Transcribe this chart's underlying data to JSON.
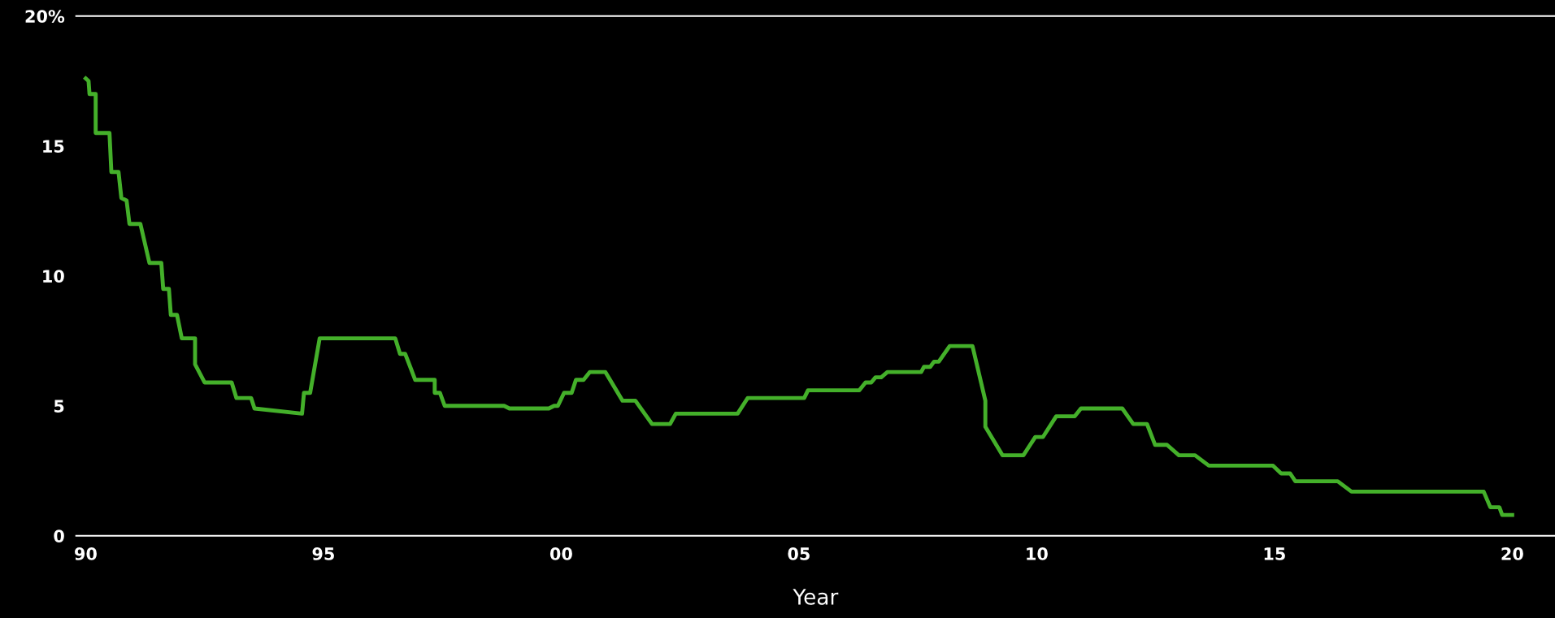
{
  "chart_data": {
    "type": "line",
    "xlabel": "Year",
    "x": [
      1990.0,
      1990.06,
      1990.08,
      1990.21,
      1990.21,
      1990.5,
      1990.54,
      1990.69,
      1990.75,
      1990.86,
      1990.92,
      1991.15,
      1991.34,
      1991.59,
      1991.63,
      1991.75,
      1991.79,
      1991.92,
      1992.02,
      1992.3,
      1992.3,
      1992.5,
      1993.07,
      1993.17,
      1993.48,
      1993.55,
      1994.55,
      1994.59,
      1994.72,
      1994.92,
      1996.51,
      1996.61,
      1996.72,
      1996.93,
      1997.34,
      1997.34,
      1997.45,
      1997.55,
      1998.8,
      1998.91,
      1999.74,
      1999.85,
      1999.93,
      2000.06,
      2000.22,
      2000.31,
      2000.47,
      2000.6,
      2000.93,
      2001.29,
      2001.56,
      2001.91,
      2002.29,
      2002.41,
      2003.71,
      2003.92,
      2005.11,
      2005.19,
      2006.27,
      2006.4,
      2006.52,
      2006.61,
      2006.73,
      2006.86,
      2007.57,
      2007.63,
      2007.76,
      2007.84,
      2007.94,
      2008.17,
      2008.65,
      2008.92,
      2008.92,
      2009.28,
      2009.72,
      2009.97,
      2010.13,
      2010.41,
      2010.8,
      2010.93,
      2011.8,
      2012.03,
      2012.32,
      2012.49,
      2012.74,
      2012.99,
      2013.33,
      2013.62,
      2014.97,
      2015.14,
      2015.33,
      2015.44,
      2016.33,
      2016.62,
      2019.4,
      2019.54,
      2019.73,
      2019.79,
      2020.0
    ],
    "series": [
      {
        "color": "#44b02a",
        "values": [
          17.6,
          17.5,
          17.0,
          17.0,
          15.5,
          15.5,
          14.0,
          14.0,
          13.0,
          12.9,
          12.0,
          12.0,
          10.5,
          10.5,
          9.5,
          9.5,
          8.5,
          8.5,
          7.6,
          7.6,
          6.6,
          5.9,
          5.9,
          5.3,
          5.3,
          4.9,
          4.7,
          5.5,
          5.5,
          7.6,
          7.6,
          7.0,
          7.0,
          6.0,
          6.0,
          5.5,
          5.5,
          5.0,
          5.0,
          4.9,
          4.9,
          5.0,
          5.0,
          5.5,
          5.5,
          6.0,
          6.0,
          6.3,
          6.3,
          5.2,
          5.2,
          4.3,
          4.3,
          4.7,
          4.7,
          5.3,
          5.3,
          5.6,
          5.6,
          5.9,
          5.9,
          6.1,
          6.1,
          6.3,
          6.3,
          6.5,
          6.5,
          6.7,
          6.7,
          7.3,
          7.3,
          5.2,
          4.2,
          3.1,
          3.1,
          3.8,
          3.8,
          4.6,
          4.6,
          4.9,
          4.9,
          4.3,
          4.3,
          3.5,
          3.5,
          3.1,
          3.1,
          2.7,
          2.7,
          2.4,
          2.4,
          2.1,
          2.1,
          1.7,
          1.7,
          1.1,
          1.1,
          0.8,
          0.8
        ]
      }
    ],
    "xlim": [
      1989.8,
      2020.9
    ],
    "ylim": [
      0,
      20
    ],
    "xticks": [
      {
        "value": 1990,
        "label": "90"
      },
      {
        "value": 1995,
        "label": "95"
      },
      {
        "value": 2000,
        "label": "00"
      },
      {
        "value": 2005,
        "label": "05"
      },
      {
        "value": 2010,
        "label": "10"
      },
      {
        "value": 2015,
        "label": "15"
      },
      {
        "value": 2020,
        "label": "20"
      }
    ],
    "yticks": [
      0,
      5,
      10,
      15,
      {
        "value": 20,
        "label": "20%"
      }
    ],
    "grid": false,
    "legend": false,
    "marker": "none",
    "line_style": "solid"
  }
}
